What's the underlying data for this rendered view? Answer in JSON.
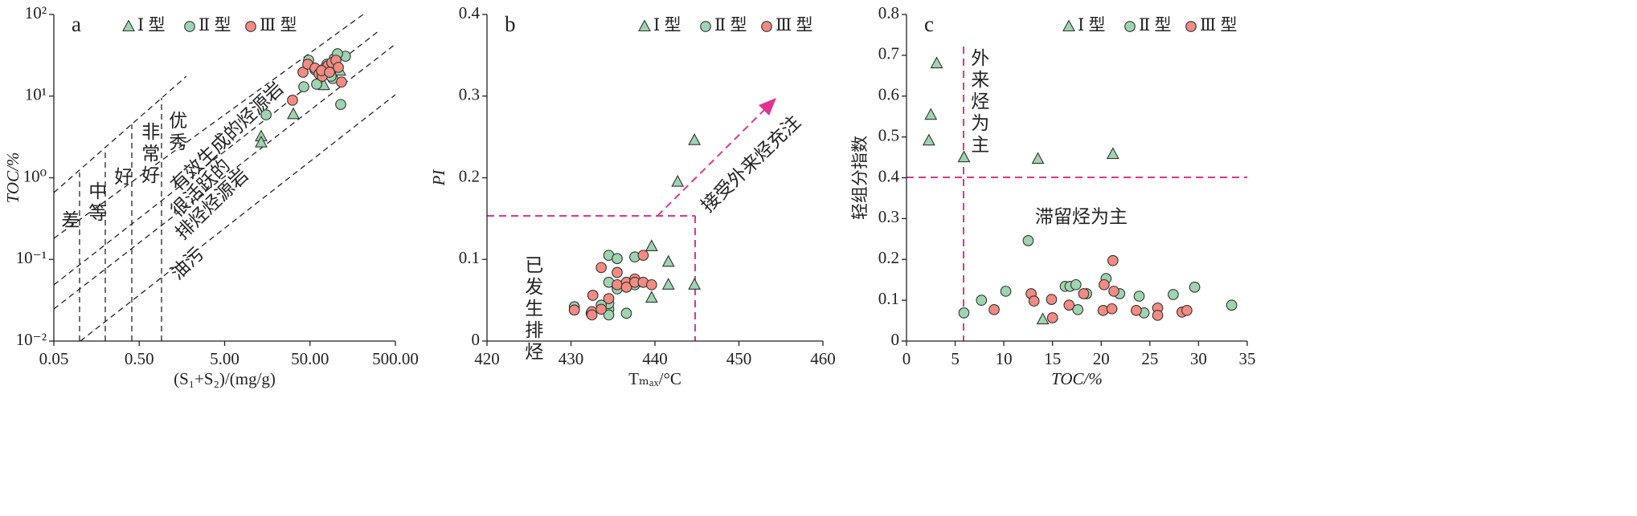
{
  "chart_data": [
    {
      "type": "scatter",
      "panel_label": "a",
      "xlabel": "(S₁+S₂)/(mg/g)",
      "ylabel": "TOC/%",
      "xscale": "log",
      "yscale": "log",
      "xlim": [
        0.05,
        500
      ],
      "xticks": [
        0.05,
        {
          "value": 0.5,
          "label": "0.50"
        },
        {
          "value": 5,
          "label": "5.00"
        },
        {
          "value": 50,
          "label": "50.00"
        },
        {
          "value": 500,
          "label": "500.00"
        }
      ],
      "ylim": [
        0.01,
        100
      ],
      "yticks": [
        {
          "value": 0.01,
          "label": "10⁻²"
        },
        {
          "value": 0.1,
          "label": "10⁻¹"
        },
        {
          "value": 1,
          "label": "10⁰"
        },
        {
          "value": 10,
          "label": "10¹"
        },
        {
          "value": 100,
          "label": "10²"
        }
      ],
      "grid": false,
      "legend": "upper left",
      "annotations": [
        "差",
        "中等",
        "好",
        "非常好",
        "优秀",
        "有效生成的烃源岩",
        "很活跃的",
        "排烃烃源岩",
        "油污"
      ],
      "series": [
        {
          "name": "Ⅰ 型",
          "marker": "triangle",
          "color": "#9fd4b0",
          "x": [
            13.4,
            13.4,
            31.9,
            72.6,
            105,
            112
          ],
          "values": [
            3.2,
            2.7,
            6.0,
            13.6,
            22,
            20.5
          ]
        },
        {
          "name": "Ⅱ 型",
          "marker": "circle",
          "color": "#9fd4b0",
          "x": [
            15.3,
            48.2,
            57.3,
            42.3,
            79.2,
            86.5,
            96.4,
            92.3,
            114.5,
            130,
            105,
            88.3,
            59.8
          ],
          "values": [
            5.9,
            27.5,
            21,
            13,
            24.6,
            23,
            28.8,
            16.4,
            7.9,
            30.8,
            33,
            17.5,
            14
          ]
        },
        {
          "name": "Ⅲ 型",
          "marker": "circle",
          "color": "#f28b82",
          "x": [
            31.2,
            41.4,
            47.1,
            57.3,
            63.8,
            69.6,
            74.3,
            80.9,
            90.2,
            100.6,
            107.4,
            116.9,
            68.1,
            84.6
          ],
          "values": [
            8.9,
            19.6,
            24.6,
            22,
            18.7,
            17.5,
            22,
            23.5,
            25.7,
            27.5,
            22.5,
            14.9,
            20.5,
            19.6
          ]
        }
      ]
    },
    {
      "type": "scatter",
      "panel_label": "b",
      "xlabel": "Tₘₐₓ/°C",
      "ylabel": "PI",
      "xlim": [
        420,
        460
      ],
      "xticks": [
        420,
        430,
        440,
        450,
        460
      ],
      "ylim": [
        0,
        0.4
      ],
      "yticks": [
        0,
        0.1,
        0.2,
        0.3,
        0.4
      ],
      "grid": false,
      "legend": "upper right",
      "annotations": [
        "接受外来烃充注",
        "已发生排烃"
      ],
      "series": [
        {
          "name": "Ⅰ 型",
          "marker": "triangle",
          "color": "#9fd4b0",
          "x": [
            444.7,
            442.7,
            439.6,
            441.6,
            441.6,
            444.7,
            439.6
          ],
          "values": [
            0.246,
            0.195,
            0.116,
            0.097,
            0.069,
            0.069,
            0.053
          ]
        },
        {
          "name": "Ⅱ 型",
          "marker": "circle",
          "color": "#9fd4b0",
          "x": [
            430.4,
            430.4,
            434.5,
            435.5,
            434.5,
            434.5,
            434.5,
            434.5,
            436.6,
            437.6,
            437.6,
            435.5,
            432.4,
            433.6
          ],
          "values": [
            0.042,
            0.038,
            0.105,
            0.101,
            0.072,
            0.039,
            0.032,
            0.046,
            0.034,
            0.103,
            0.069,
            0.064,
            0.034,
            0.044
          ]
        },
        {
          "name": "Ⅲ 型",
          "marker": "circle",
          "color": "#f28b82",
          "x": [
            430.4,
            432.5,
            432.5,
            432.6,
            433.6,
            434.5,
            435.5,
            435.5,
            436.6,
            436.6,
            437.6,
            437.6,
            438.6,
            438.6,
            439.6,
            433.6
          ],
          "values": [
            0.038,
            0.036,
            0.032,
            0.056,
            0.09,
            0.052,
            0.084,
            0.069,
            0.072,
            0.066,
            0.076,
            0.072,
            0.105,
            0.072,
            0.069,
            0.039
          ]
        }
      ]
    },
    {
      "type": "scatter",
      "panel_label": "c",
      "xlabel": "TOC/%",
      "ylabel": "轻组分指数",
      "xlim": [
        0,
        35
      ],
      "xticks": [
        0,
        5,
        10,
        15,
        20,
        25,
        30,
        35
      ],
      "ylim": [
        0,
        0.8
      ],
      "yticks": [
        0,
        0.1,
        0.2,
        0.3,
        0.4,
        0.5,
        0.6,
        0.7,
        0.8
      ],
      "grid": false,
      "legend": "upper right",
      "annotations": [
        "外来烃为主",
        "滞留烃为主"
      ],
      "series": [
        {
          "name": "Ⅰ 型",
          "marker": "triangle",
          "color": "#9fd4b0",
          "x": [
            3.1,
            2.5,
            2.3,
            5.9,
            13.5,
            21.2,
            14.0
          ],
          "values": [
            0.68,
            0.554,
            0.491,
            0.45,
            0.446,
            0.458,
            0.053
          ]
        },
        {
          "name": "Ⅱ 型",
          "marker": "circle",
          "color": "#9fd4b0",
          "x": [
            5.9,
            7.7,
            10.2,
            12.5,
            16.3,
            16.8,
            17.4,
            17.6,
            18.5,
            20.5,
            21.9,
            23.9,
            24.4,
            27.4,
            29.6,
            33.4
          ],
          "values": [
            0.069,
            0.1,
            0.122,
            0.246,
            0.134,
            0.134,
            0.138,
            0.077,
            0.116,
            0.153,
            0.116,
            0.11,
            0.069,
            0.114,
            0.132,
            0.088
          ]
        },
        {
          "name": "Ⅲ 型",
          "marker": "circle",
          "color": "#f28b82",
          "x": [
            9.0,
            12.8,
            13.1,
            14.9,
            15.0,
            16.7,
            18.2,
            20.2,
            21.1,
            21.2,
            21.3,
            20.3,
            23.6,
            25.8,
            25.8,
            28.3,
            28.8
          ],
          "values": [
            0.077,
            0.116,
            0.098,
            0.102,
            0.057,
            0.088,
            0.116,
            0.075,
            0.079,
            0.197,
            0.122,
            0.138,
            0.075,
            0.081,
            0.063,
            0.071,
            0.075
          ]
        }
      ]
    }
  ]
}
